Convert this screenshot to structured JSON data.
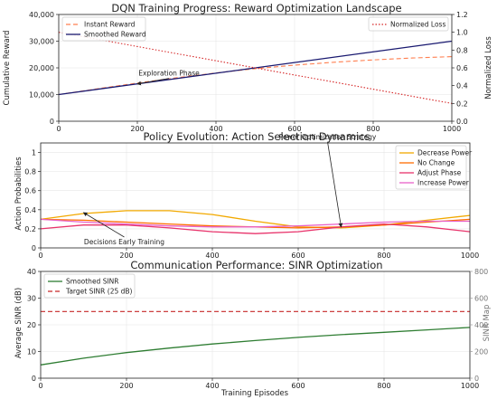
{
  "chart_data": [
    {
      "type": "line",
      "title": "DQN Training Progress: Reward Optimization Landscape",
      "xlabel": "",
      "ylabel": "Cumulative Reward",
      "y2label": "Normalized Loss",
      "xlim": [
        0,
        1000
      ],
      "ylim": [
        0,
        40000
      ],
      "y2lim": [
        0,
        1.2
      ],
      "xticks": [
        0,
        200,
        400,
        600,
        800,
        1000
      ],
      "yticks": [
        0,
        10000,
        20000,
        30000,
        40000
      ],
      "yticklabels": [
        "0",
        "10,000",
        "20,000",
        "30,000",
        "40,000"
      ],
      "y2ticks": [
        0.0,
        0.2,
        0.4,
        0.6,
        0.8,
        1.0,
        1.2
      ],
      "grid": true,
      "legend": "top-left",
      "legend2": "top-right",
      "series": [
        {
          "name": "Instant Reward",
          "axis": "left",
          "color": "#ff7f50",
          "style": "dashed",
          "x": [
            0,
            100,
            200,
            300,
            400,
            500,
            600,
            700,
            800,
            900,
            1000
          ],
          "y": [
            10000,
            12200,
            14300,
            16300,
            18100,
            19700,
            21000,
            22100,
            23000,
            23700,
            24200
          ]
        },
        {
          "name": "Smoothed Reward",
          "axis": "left",
          "color": "#191970",
          "style": "solid",
          "x": [
            0,
            1000
          ],
          "y": [
            10000,
            30000
          ]
        },
        {
          "name": "Normalized Loss",
          "axis": "right",
          "color": "#d62728",
          "style": "dotted",
          "x": [
            0,
            100,
            200,
            300,
            400,
            500,
            600,
            700,
            800,
            900,
            1000
          ],
          "y": [
            1.0,
            0.92,
            0.84,
            0.76,
            0.68,
            0.6,
            0.52,
            0.44,
            0.36,
            0.28,
            0.2
          ]
        }
      ],
      "annotations": [
        {
          "text": "Exploration Phase",
          "x": 200,
          "y": 14000
        }
      ]
    },
    {
      "type": "line",
      "title": "Policy Evolution: Action Selection Dynamics",
      "xlabel": "",
      "ylabel": "Action Probabilities",
      "xlim": [
        0,
        1000
      ],
      "ylim": [
        0,
        1.1
      ],
      "xticks": [
        0,
        200,
        400,
        600,
        800,
        1000
      ],
      "yticks": [
        0.0,
        0.2,
        0.4,
        0.6,
        0.8,
        1.0
      ],
      "grid": true,
      "legend": "top-right",
      "series": [
        {
          "name": "Decrease Power",
          "color": "#f2a900",
          "style": "solid",
          "x": [
            0,
            100,
            200,
            300,
            400,
            500,
            600,
            700,
            800,
            900,
            1000
          ],
          "y": [
            0.3,
            0.36,
            0.39,
            0.39,
            0.35,
            0.28,
            0.22,
            0.21,
            0.24,
            0.29,
            0.34
          ]
        },
        {
          "name": "No Change",
          "color": "#ff6d00",
          "style": "solid",
          "x": [
            0,
            100,
            200,
            300,
            400,
            500,
            600,
            700,
            800,
            900,
            1000
          ],
          "y": [
            0.3,
            0.29,
            0.27,
            0.25,
            0.23,
            0.22,
            0.21,
            0.22,
            0.24,
            0.27,
            0.3
          ]
        },
        {
          "name": "Adjust Phase",
          "color": "#e8336b",
          "style": "solid",
          "x": [
            0,
            100,
            200,
            300,
            400,
            500,
            600,
            700,
            800,
            900,
            1000
          ],
          "y": [
            0.2,
            0.24,
            0.24,
            0.21,
            0.17,
            0.15,
            0.17,
            0.22,
            0.25,
            0.22,
            0.17
          ]
        },
        {
          "name": "Increase Power",
          "color": "#e862c8",
          "style": "solid",
          "x": [
            0,
            100,
            200,
            300,
            400,
            500,
            600,
            700,
            800,
            900,
            1000
          ],
          "y": [
            0.3,
            0.27,
            0.25,
            0.23,
            0.22,
            0.22,
            0.23,
            0.25,
            0.27,
            0.28,
            0.28
          ]
        }
      ],
      "annotations": [
        {
          "text": "Power Optimization Strategy",
          "x": 700,
          "y": 0.22
        },
        {
          "text": "Decisions Early Training",
          "x": 100,
          "y": 0.37
        }
      ]
    },
    {
      "type": "line",
      "title": "Communication Performance: SINR Optimization",
      "xlabel": "Training Episodes",
      "ylabel": "Average SINR (dB)",
      "y2label": "SINR Map",
      "xlim": [
        0,
        1000
      ],
      "ylim": [
        0,
        40
      ],
      "y2lim": [
        0,
        800
      ],
      "xticks": [
        0,
        200,
        400,
        600,
        800,
        1000
      ],
      "yticks": [
        0,
        10,
        20,
        30,
        40
      ],
      "y2ticks": [
        0,
        200,
        400,
        600,
        800
      ],
      "grid": true,
      "legend": "top-left",
      "series": [
        {
          "name": "Smoothed SINR",
          "color": "#2e7d32",
          "style": "solid",
          "x": [
            0,
            100,
            200,
            300,
            400,
            500,
            600,
            700,
            800,
            900,
            1000
          ],
          "y": [
            5,
            7.5,
            9.6,
            11.3,
            12.8,
            14.1,
            15.3,
            16.3,
            17.2,
            18.1,
            19
          ]
        },
        {
          "name": "Target SINR (25 dB)",
          "color": "#c62828",
          "style": "dashed",
          "x": [
            0,
            1000
          ],
          "y": [
            25,
            25
          ]
        }
      ]
    }
  ]
}
